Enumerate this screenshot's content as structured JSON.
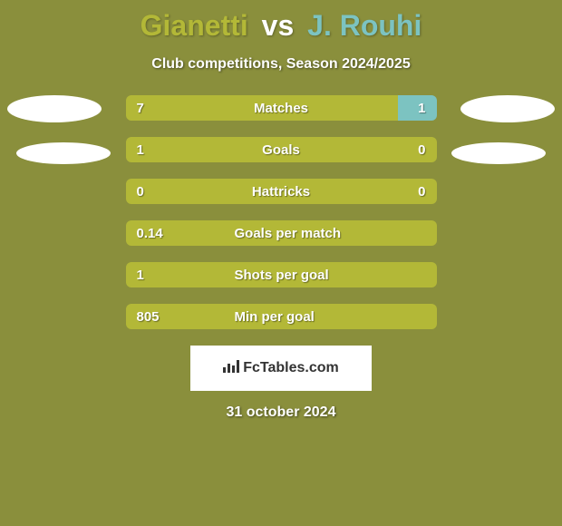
{
  "background_color": "#8a8f3c",
  "title": {
    "player1": "Gianetti",
    "vs": "vs",
    "player2": "J. Rouhi",
    "player1_color": "#b3b837",
    "vs_color": "#ffffff",
    "player2_color": "#7cc3c1"
  },
  "subtitle": {
    "text": "Club competitions, Season 2024/2025",
    "color": "#ffffff"
  },
  "avatar_color": "#ffffff",
  "colors": {
    "player1_bar": "#b3b837",
    "player2_bar": "#7cc3c1",
    "text": "#ffffff"
  },
  "stats": [
    {
      "label": "Matches",
      "player1_value": "7",
      "player2_value": "1",
      "player1_pct": 87.5,
      "player2_pct": 12.5,
      "label_center": true
    },
    {
      "label": "Goals",
      "player1_value": "1",
      "player2_value": "0",
      "player1_pct": 100,
      "player2_pct": 0,
      "label_center": true
    },
    {
      "label": "Hattricks",
      "player1_value": "0",
      "player2_value": "0",
      "player1_pct": 100,
      "player2_pct": 0,
      "label_center": true
    },
    {
      "label": "Goals per match",
      "player1_value": "0.14",
      "player2_value": "",
      "player1_pct": 100,
      "player2_pct": 0,
      "label_center": false
    },
    {
      "label": "Shots per goal",
      "player1_value": "1",
      "player2_value": "",
      "player1_pct": 100,
      "player2_pct": 0,
      "label_center": false
    },
    {
      "label": "Min per goal",
      "player1_value": "805",
      "player2_value": "",
      "player1_pct": 100,
      "player2_pct": 0,
      "label_center": false
    }
  ],
  "logo": {
    "text": "FcTables.com",
    "background": "#ffffff",
    "text_color": "#333333"
  },
  "date": {
    "text": "31 october 2024",
    "color": "#ffffff"
  }
}
